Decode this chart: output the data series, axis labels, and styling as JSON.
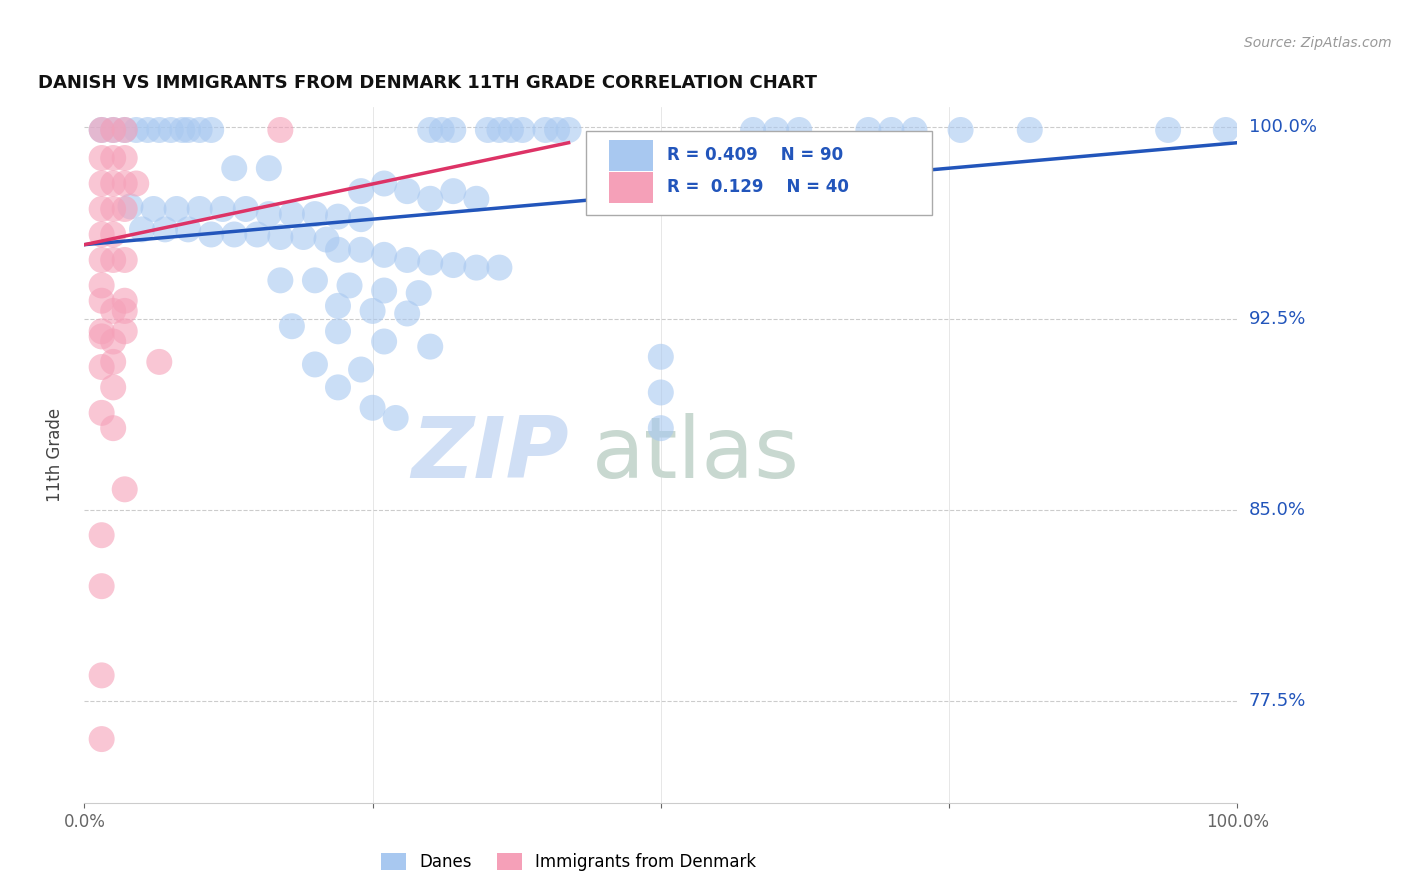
{
  "title": "DANISH VS IMMIGRANTS FROM DENMARK 11TH GRADE CORRELATION CHART",
  "source_text": "Source: ZipAtlas.com",
  "ylabel": "11th Grade",
  "xlim": [
    0,
    1
  ],
  "ylim": [
    0.735,
    1.008
  ],
  "yticks": [
    0.775,
    0.85,
    0.925,
    1.0
  ],
  "ytick_labels": [
    "77.5%",
    "85.0%",
    "92.5%",
    "100.0%"
  ],
  "legend_labels": [
    "Danes",
    "Immigrants from Denmark"
  ],
  "blue_R": 0.409,
  "blue_N": 90,
  "pink_R": 0.129,
  "pink_N": 40,
  "blue_color": "#A8C8F0",
  "pink_color": "#F5A0B8",
  "blue_line_color": "#2255BB",
  "pink_line_color": "#DD3366",
  "title_color": "#111111",
  "source_color": "#999999",
  "legend_text_color": "#2255BB",
  "watermark_color": "#D0DFF5",
  "blue_line": [
    [
      0.0,
      0.954
    ],
    [
      1.0,
      0.994
    ]
  ],
  "pink_line": [
    [
      0.0,
      0.954
    ],
    [
      0.42,
      0.994
    ]
  ],
  "blue_dots": [
    [
      0.015,
      0.999
    ],
    [
      0.025,
      0.999
    ],
    [
      0.035,
      0.999
    ],
    [
      0.045,
      0.999
    ],
    [
      0.055,
      0.999
    ],
    [
      0.065,
      0.999
    ],
    [
      0.075,
      0.999
    ],
    [
      0.085,
      0.999
    ],
    [
      0.09,
      0.999
    ],
    [
      0.1,
      0.999
    ],
    [
      0.11,
      0.999
    ],
    [
      0.3,
      0.999
    ],
    [
      0.31,
      0.999
    ],
    [
      0.32,
      0.999
    ],
    [
      0.35,
      0.999
    ],
    [
      0.36,
      0.999
    ],
    [
      0.37,
      0.999
    ],
    [
      0.38,
      0.999
    ],
    [
      0.4,
      0.999
    ],
    [
      0.41,
      0.999
    ],
    [
      0.42,
      0.999
    ],
    [
      0.58,
      0.999
    ],
    [
      0.6,
      0.999
    ],
    [
      0.62,
      0.999
    ],
    [
      0.68,
      0.999
    ],
    [
      0.7,
      0.999
    ],
    [
      0.72,
      0.999
    ],
    [
      0.76,
      0.999
    ],
    [
      0.82,
      0.999
    ],
    [
      0.94,
      0.999
    ],
    [
      0.99,
      0.999
    ],
    [
      0.13,
      0.984
    ],
    [
      0.16,
      0.984
    ],
    [
      0.24,
      0.975
    ],
    [
      0.26,
      0.978
    ],
    [
      0.28,
      0.975
    ],
    [
      0.3,
      0.972
    ],
    [
      0.32,
      0.975
    ],
    [
      0.34,
      0.972
    ],
    [
      0.04,
      0.969
    ],
    [
      0.06,
      0.968
    ],
    [
      0.08,
      0.968
    ],
    [
      0.1,
      0.968
    ],
    [
      0.12,
      0.968
    ],
    [
      0.14,
      0.968
    ],
    [
      0.16,
      0.966
    ],
    [
      0.18,
      0.966
    ],
    [
      0.2,
      0.966
    ],
    [
      0.22,
      0.965
    ],
    [
      0.24,
      0.964
    ],
    [
      0.05,
      0.96
    ],
    [
      0.07,
      0.96
    ],
    [
      0.09,
      0.96
    ],
    [
      0.11,
      0.958
    ],
    [
      0.13,
      0.958
    ],
    [
      0.15,
      0.958
    ],
    [
      0.17,
      0.957
    ],
    [
      0.19,
      0.957
    ],
    [
      0.21,
      0.956
    ],
    [
      0.22,
      0.952
    ],
    [
      0.24,
      0.952
    ],
    [
      0.26,
      0.95
    ],
    [
      0.28,
      0.948
    ],
    [
      0.3,
      0.947
    ],
    [
      0.32,
      0.946
    ],
    [
      0.34,
      0.945
    ],
    [
      0.36,
      0.945
    ],
    [
      0.17,
      0.94
    ],
    [
      0.2,
      0.94
    ],
    [
      0.23,
      0.938
    ],
    [
      0.26,
      0.936
    ],
    [
      0.29,
      0.935
    ],
    [
      0.22,
      0.93
    ],
    [
      0.25,
      0.928
    ],
    [
      0.28,
      0.927
    ],
    [
      0.18,
      0.922
    ],
    [
      0.22,
      0.92
    ],
    [
      0.26,
      0.916
    ],
    [
      0.3,
      0.914
    ],
    [
      0.2,
      0.907
    ],
    [
      0.24,
      0.905
    ],
    [
      0.22,
      0.898
    ],
    [
      0.25,
      0.89
    ],
    [
      0.27,
      0.886
    ],
    [
      0.5,
      0.91
    ],
    [
      0.5,
      0.896
    ],
    [
      0.5,
      0.882
    ]
  ],
  "pink_dots": [
    [
      0.015,
      0.999
    ],
    [
      0.025,
      0.999
    ],
    [
      0.035,
      0.999
    ],
    [
      0.17,
      0.999
    ],
    [
      0.015,
      0.988
    ],
    [
      0.025,
      0.988
    ],
    [
      0.035,
      0.988
    ],
    [
      0.015,
      0.978
    ],
    [
      0.025,
      0.978
    ],
    [
      0.035,
      0.978
    ],
    [
      0.045,
      0.978
    ],
    [
      0.015,
      0.968
    ],
    [
      0.025,
      0.968
    ],
    [
      0.035,
      0.968
    ],
    [
      0.015,
      0.958
    ],
    [
      0.025,
      0.958
    ],
    [
      0.015,
      0.948
    ],
    [
      0.025,
      0.948
    ],
    [
      0.035,
      0.948
    ],
    [
      0.015,
      0.938
    ],
    [
      0.025,
      0.928
    ],
    [
      0.035,
      0.928
    ],
    [
      0.015,
      0.918
    ],
    [
      0.025,
      0.908
    ],
    [
      0.065,
      0.908
    ],
    [
      0.025,
      0.898
    ],
    [
      0.015,
      0.888
    ],
    [
      0.025,
      0.882
    ],
    [
      0.015,
      0.932
    ],
    [
      0.035,
      0.932
    ],
    [
      0.015,
      0.92
    ],
    [
      0.025,
      0.916
    ],
    [
      0.015,
      0.906
    ],
    [
      0.035,
      0.858
    ],
    [
      0.015,
      0.84
    ],
    [
      0.015,
      0.82
    ],
    [
      0.015,
      0.785
    ],
    [
      0.015,
      0.76
    ],
    [
      0.035,
      0.92
    ]
  ]
}
